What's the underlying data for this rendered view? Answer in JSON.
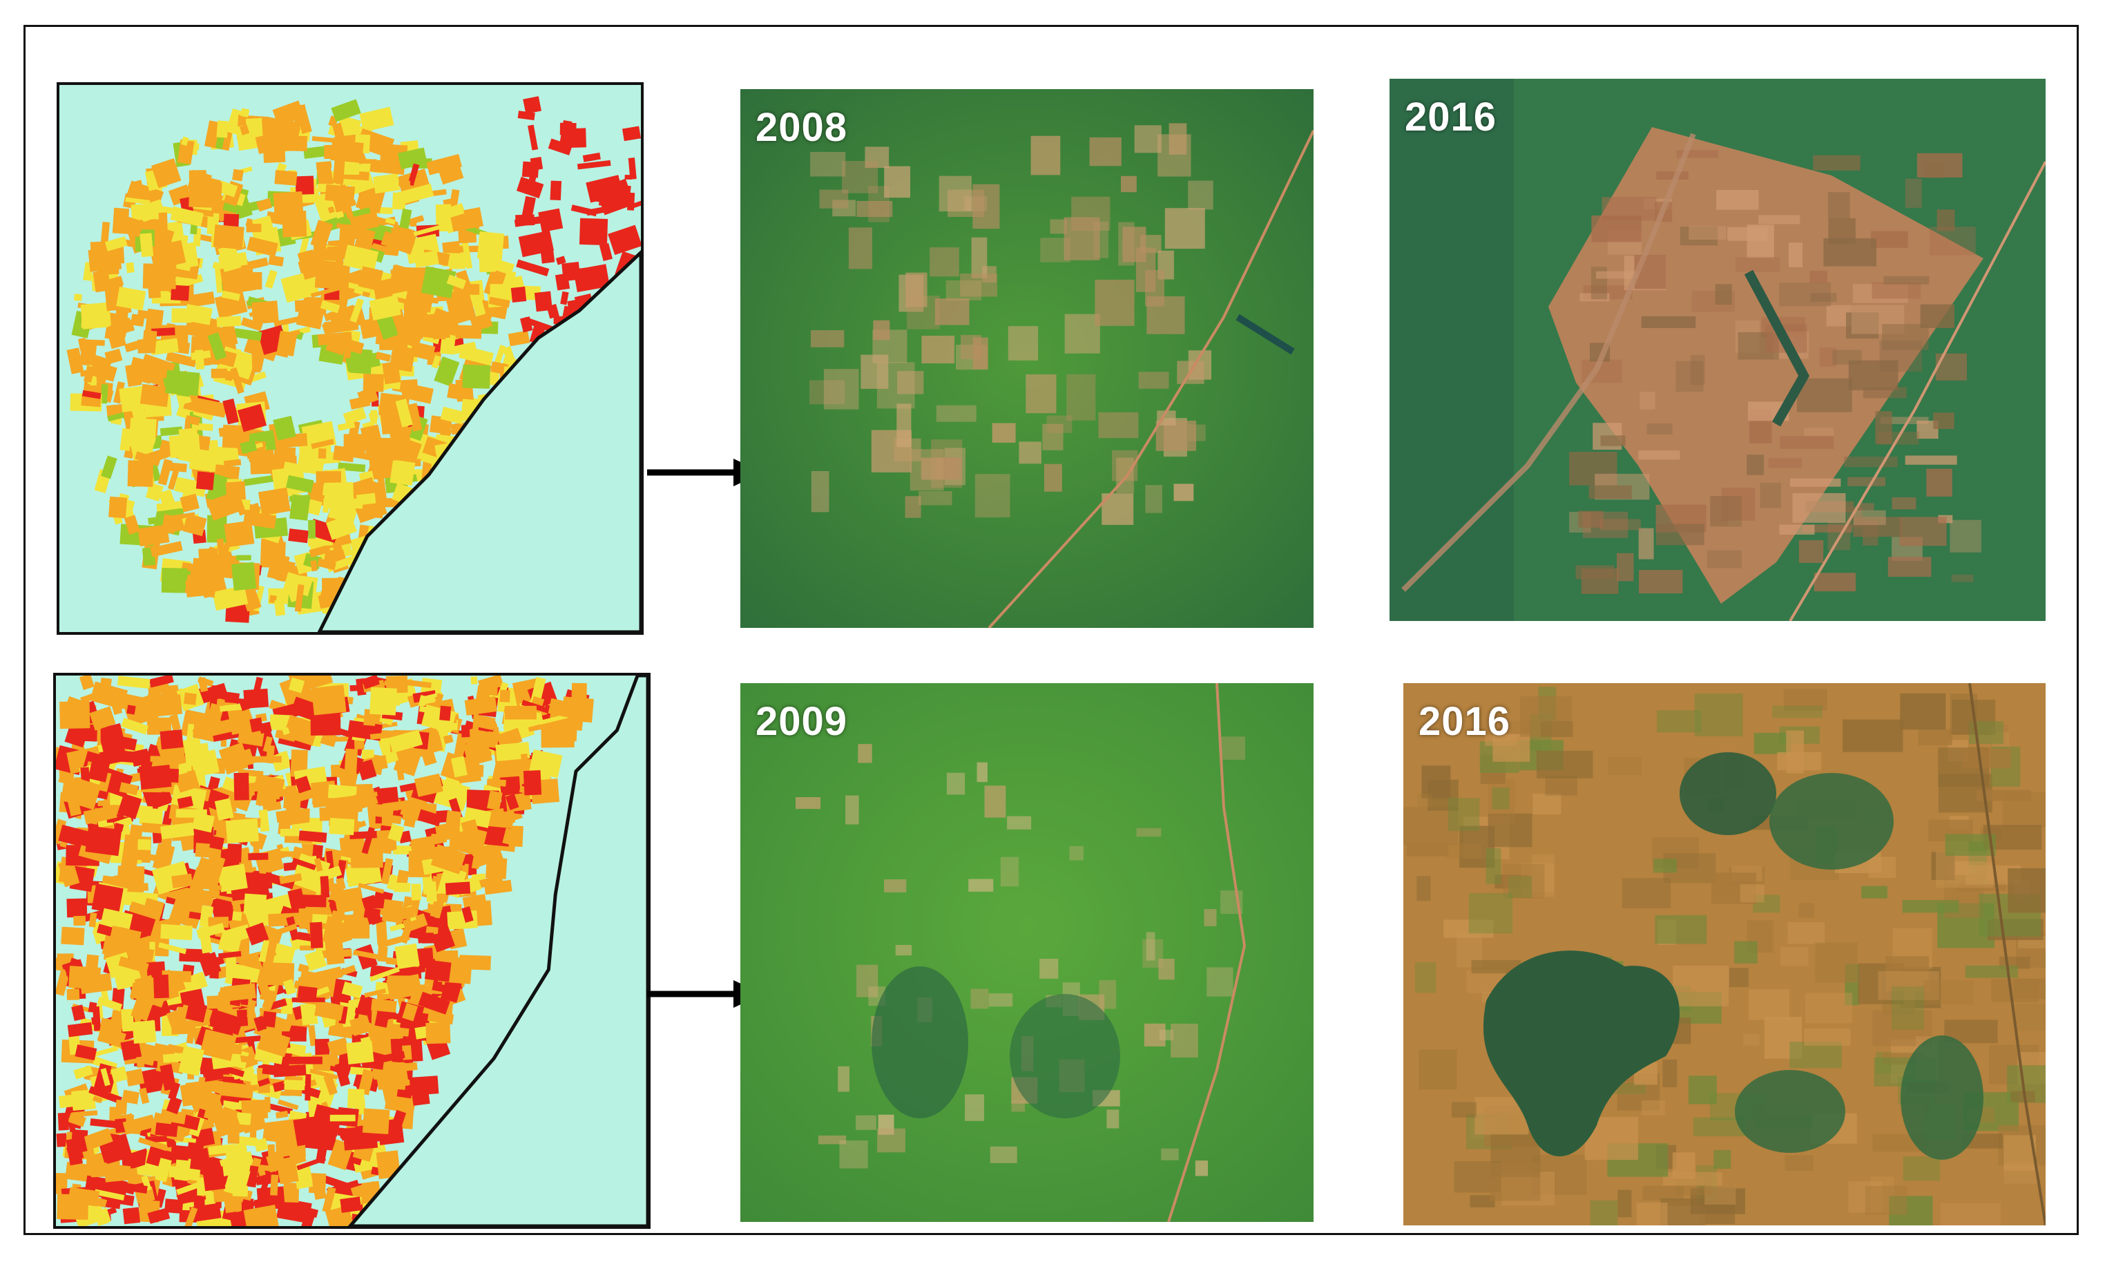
{
  "panels": [
    {
      "id": "map-top",
      "type": "classified-map",
      "row": 1
    },
    {
      "id": "image-top-before",
      "type": "satellite-image",
      "row": 1,
      "year": "2008"
    },
    {
      "id": "image-top-after",
      "type": "satellite-image",
      "row": 1,
      "year": "2016"
    },
    {
      "id": "map-bottom",
      "type": "classified-map",
      "row": 2
    },
    {
      "id": "image-bottom-before",
      "type": "satellite-image",
      "row": 2,
      "year": "2009"
    },
    {
      "id": "image-bottom-after",
      "type": "satellite-image",
      "row": 2,
      "year": "2016"
    }
  ],
  "colors": {
    "map_background": "#b8f2e2",
    "class_orange": "#f5a623",
    "class_yellow": "#f2e33a",
    "class_green": "#9bcb28",
    "class_red": "#e8261c",
    "vegetation_green": "#3f8a34",
    "cleared_land": "#c88a5a",
    "arrow": "#000000"
  },
  "arrows": [
    {
      "from": "map-top",
      "to": "image-top-before",
      "icon": "right-arrow-icon"
    },
    {
      "from": "map-bottom",
      "to": "image-bottom-before",
      "icon": "right-arrow-icon"
    }
  ]
}
